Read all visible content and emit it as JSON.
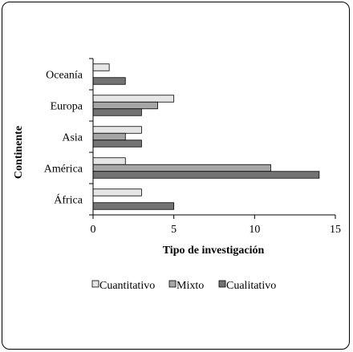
{
  "chart_data": {
    "type": "bar",
    "orientation": "horizontal",
    "categories": [
      "África",
      "América",
      "Asia",
      "Europa",
      "Oceanía"
    ],
    "series": [
      {
        "name": "Cuantitativo",
        "values": [
          3,
          2,
          3,
          5,
          1
        ],
        "color": "#e6e6e6"
      },
      {
        "name": "Mixto",
        "values": [
          0,
          11,
          2,
          4,
          0
        ],
        "color": "#a6a6a6"
      },
      {
        "name": "Cualitativo",
        "values": [
          5,
          14,
          3,
          3,
          2
        ],
        "color": "#737373"
      }
    ],
    "title": "",
    "xlabel": "Tipo de investigación",
    "ylabel": "Continente",
    "xlim": [
      0,
      15
    ],
    "xticks": [
      "0",
      "5",
      "10",
      "15"
    ],
    "grid": false,
    "legend_position": "bottom"
  }
}
